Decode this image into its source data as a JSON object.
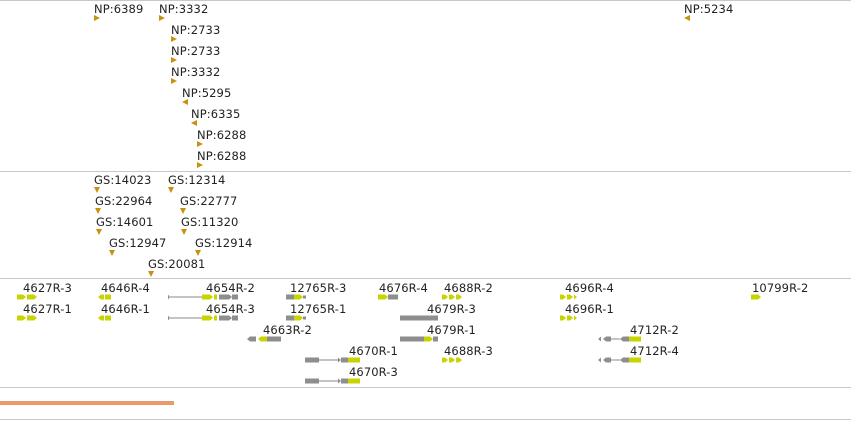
{
  "colors": {
    "marker": "#c8920f",
    "exon_grey": "#8e8e8e",
    "cds_yellow": "#c8d400",
    "intron": "#888888",
    "divider": "#c8c8c8",
    "scale_bar": "#e89a6c"
  },
  "np_track": {
    "features": [
      {
        "label": "NP:6389",
        "dir": "right"
      },
      {
        "label": "NP:3332",
        "dir": "right"
      },
      {
        "label": "NP:2733",
        "dir": "right"
      },
      {
        "label": "NP:2733",
        "dir": "right"
      },
      {
        "label": "NP:3332",
        "dir": "right"
      },
      {
        "label": "NP:5295",
        "dir": "left"
      },
      {
        "label": "NP:6335",
        "dir": "left"
      },
      {
        "label": "NP:6288",
        "dir": "right"
      },
      {
        "label": "NP:6288",
        "dir": "right"
      },
      {
        "label": "NP:5234",
        "dir": "left"
      }
    ]
  },
  "gs_track": {
    "features": [
      {
        "label": "GS:14023",
        "dir": "down"
      },
      {
        "label": "GS:12314",
        "dir": "down"
      },
      {
        "label": "GS:22964",
        "dir": "down"
      },
      {
        "label": "GS:22777",
        "dir": "down"
      },
      {
        "label": "GS:14601",
        "dir": "down"
      },
      {
        "label": "GS:11320",
        "dir": "down"
      },
      {
        "label": "GS:12947",
        "dir": "down"
      },
      {
        "label": "GS:12914",
        "dir": "down"
      },
      {
        "label": "GS:20081",
        "dir": "down"
      }
    ]
  },
  "transcript_track": {
    "transcripts": [
      {
        "label": "4627R-3",
        "strand": "+"
      },
      {
        "label": "4627R-1",
        "strand": "+"
      },
      {
        "label": "4646R-4",
        "strand": "-"
      },
      {
        "label": "4646R-1",
        "strand": "-"
      },
      {
        "label": "4654R-2",
        "strand": "+"
      },
      {
        "label": "4654R-3",
        "strand": "+"
      },
      {
        "label": "12765R-3",
        "strand": "+"
      },
      {
        "label": "12765R-1",
        "strand": "+"
      },
      {
        "label": "4663R-2",
        "strand": "-"
      },
      {
        "label": "4676R-4",
        "strand": "+"
      },
      {
        "label": "4670R-1",
        "strand": "+"
      },
      {
        "label": "4670R-3",
        "strand": "+"
      },
      {
        "label": "4679R-3",
        "strand": "+"
      },
      {
        "label": "4679R-1",
        "strand": "+"
      },
      {
        "label": "4688R-2",
        "strand": "+"
      },
      {
        "label": "4688R-3",
        "strand": "+"
      },
      {
        "label": "4696R-4",
        "strand": "+"
      },
      {
        "label": "4696R-1",
        "strand": "+"
      },
      {
        "label": "4712R-2",
        "strand": "-"
      },
      {
        "label": "4712R-4",
        "strand": "-"
      },
      {
        "label": "10799R-2",
        "strand": "+"
      }
    ]
  }
}
